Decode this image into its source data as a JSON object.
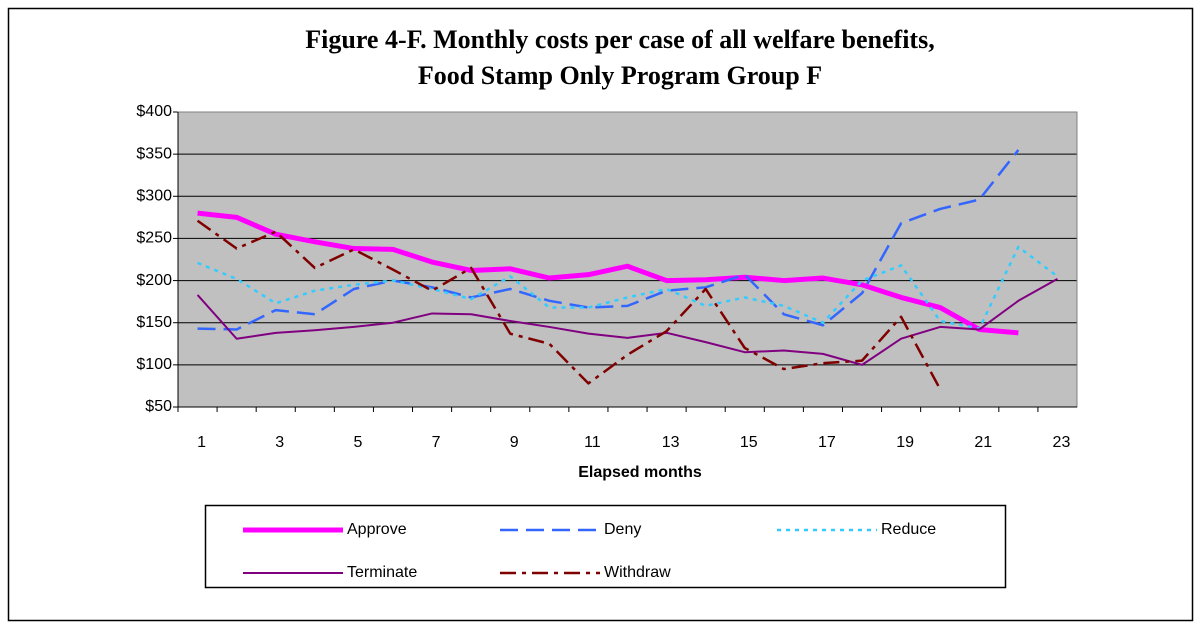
{
  "chart_data": {
    "type": "line",
    "title": "Figure 4-F. Monthly costs per case of all welfare benefits,",
    "subtitle": "Food Stamp Only Program Group F",
    "x_label": "Elapsed months",
    "categories": [
      "1",
      null,
      "3",
      null,
      "5",
      null,
      "7",
      null,
      "9",
      null,
      "11",
      null,
      "13",
      null,
      "15",
      null,
      "17",
      null,
      "19",
      null,
      "21",
      null,
      "23"
    ],
    "ylim": [
      50,
      400
    ],
    "yticks": [
      {
        "value": 50,
        "label": "$50"
      },
      {
        "value": 100,
        "label": "$100"
      },
      {
        "value": 150,
        "label": "$150"
      },
      {
        "value": 200,
        "label": "$200"
      },
      {
        "value": 250,
        "label": "$250"
      },
      {
        "value": 300,
        "label": "$300"
      },
      {
        "value": 350,
        "label": "$350"
      },
      {
        "value": 400,
        "label": "$400"
      }
    ],
    "grid": true,
    "series": [
      {
        "name": "Approve",
        "color": "#ff00ff",
        "values": [
          280,
          275,
          255,
          246,
          238,
          237,
          222,
          212,
          214,
          203,
          207,
          217,
          200,
          201,
          204,
          200,
          203,
          195,
          180,
          168,
          142,
          138,
          null
        ]
      },
      {
        "name": "Deny",
        "color": "#3366ff",
        "values": [
          143,
          142,
          165,
          160,
          190,
          200,
          192,
          180,
          190,
          176,
          168,
          170,
          188,
          192,
          207,
          160,
          147,
          185,
          268,
          285,
          296,
          355,
          null
        ]
      },
      {
        "name": "Reduce",
        "color": "#33ccff",
        "values": [
          221,
          202,
          173,
          188,
          195,
          200,
          190,
          178,
          205,
          168,
          168,
          180,
          190,
          170,
          180,
          170,
          150,
          200,
          218,
          152,
          143,
          240,
          205
        ]
      },
      {
        "name": "Terminate",
        "color": "#800080",
        "values": [
          183,
          131,
          138,
          141,
          145,
          150,
          161,
          160,
          152,
          145,
          137,
          132,
          138,
          127,
          115,
          117,
          113,
          100,
          131,
          145,
          142,
          176,
          202
        ]
      },
      {
        "name": "Withdraw",
        "color": "#800000",
        "values": [
          271,
          238,
          258,
          215,
          237,
          213,
          188,
          215,
          137,
          125,
          78,
          112,
          140,
          190,
          120,
          95,
          102,
          105,
          157,
          71,
          null,
          null,
          null
        ]
      }
    ]
  }
}
